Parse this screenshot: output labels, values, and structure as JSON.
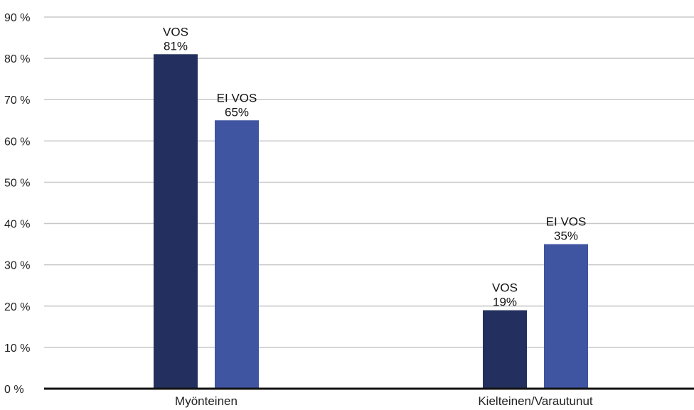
{
  "chart_data": {
    "type": "bar",
    "categories": [
      "Myönteinen",
      "Kielteinen/Varautunut"
    ],
    "ylim": [
      0,
      90
    ],
    "yticks": [
      0,
      10,
      20,
      30,
      40,
      50,
      60,
      70,
      80,
      90
    ],
    "ytick_labels": [
      "0 %",
      "10 %",
      "20 %",
      "30 %",
      "40 %",
      "50 %",
      "60 %",
      "70 %",
      "80 %",
      "90 %"
    ],
    "grid": true,
    "series": [
      {
        "name": "VOS",
        "values": [
          81,
          19
        ],
        "value_labels": [
          "81%",
          "19%"
        ],
        "color": "#23305f"
      },
      {
        "name": "EI VOS",
        "values": [
          65,
          35
        ],
        "value_labels": [
          "65%",
          "35%"
        ],
        "color": "#3f55a2"
      }
    ],
    "colors": {
      "grid": "#c8c8c8",
      "axis": "#111111"
    }
  }
}
